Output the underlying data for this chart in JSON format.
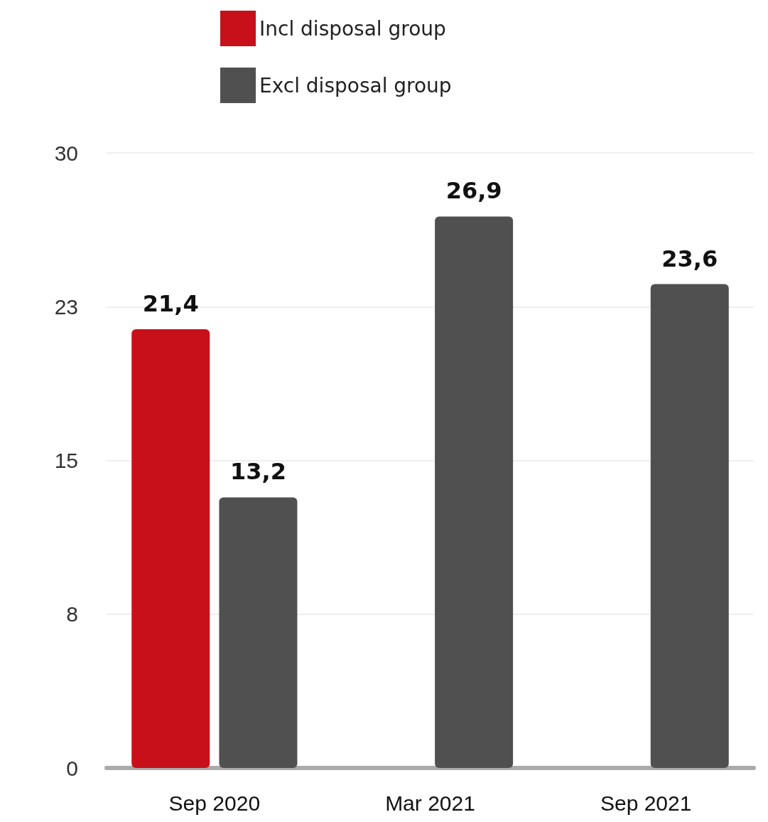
{
  "chart_data": {
    "type": "bar",
    "categories": [
      "Sep 2020",
      "Mar 2021",
      "Sep 2021"
    ],
    "series": [
      {
        "name": "Incl disposal group",
        "color": "#c8101a",
        "values": [
          21.4,
          null,
          null
        ],
        "value_labels": [
          "21,4",
          null,
          null
        ]
      },
      {
        "name": "Excl disposal group",
        "color": "#505050",
        "values": [
          13.2,
          26.9,
          23.6
        ],
        "value_labels": [
          "13,2",
          "26,9",
          "23,6"
        ]
      }
    ],
    "ylim": [
      0,
      30
    ],
    "yticks": [
      0,
      {
        "value": 7.5,
        "label": "8"
      },
      15,
      {
        "value": 22.5,
        "label": "23"
      },
      30
    ],
    "grid": "y",
    "legend": "top"
  }
}
